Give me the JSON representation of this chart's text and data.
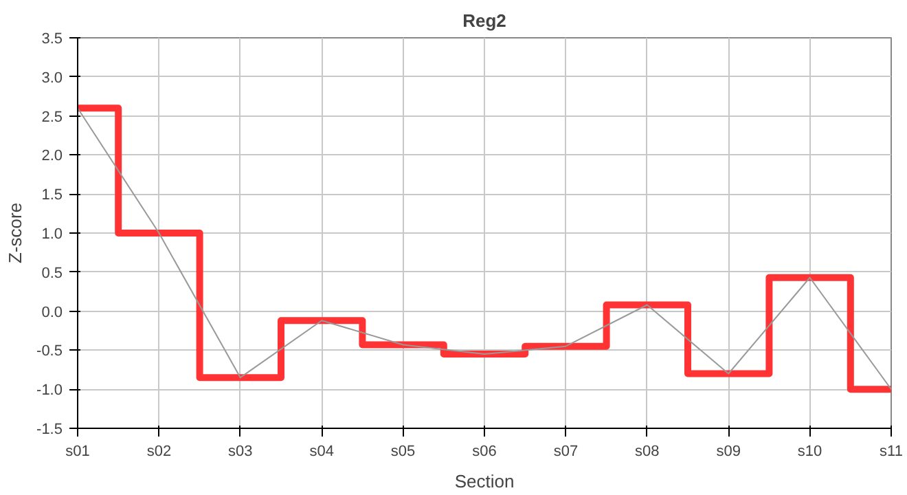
{
  "chart_data": {
    "type": "step",
    "title": "Reg2",
    "xlabel": "Section",
    "ylabel": "Z-score",
    "categories": [
      "s01",
      "s02",
      "s03",
      "s04",
      "s05",
      "s06",
      "s07",
      "s08",
      "s09",
      "s10",
      "s11"
    ],
    "series": [
      {
        "color": "#ff3333",
        "values": [
          2.6,
          1.0,
          -0.85,
          -0.12,
          -0.43,
          -0.55,
          -0.45,
          0.08,
          -0.8,
          0.43,
          -1.0
        ]
      },
      {
        "type": "line",
        "color": "#999999",
        "values": [
          2.6,
          1.0,
          -0.85,
          -0.12,
          -0.43,
          -0.55,
          -0.45,
          0.08,
          -0.8,
          0.43,
          -1.0
        ]
      }
    ],
    "ylim": [
      -1.5,
      3.5
    ],
    "yticks": [
      {
        "value": -1.5,
        "label": "-1.5"
      },
      {
        "value": -1,
        "label": "-1.0"
      },
      {
        "value": -0.5,
        "label": "-0.5"
      },
      {
        "value": 0,
        "label": "0.0"
      },
      {
        "value": 0.5,
        "label": "0.5"
      },
      {
        "value": 1,
        "label": "1.0"
      },
      {
        "value": 1.5,
        "label": "1.5"
      },
      {
        "value": 2,
        "label": "2.0"
      },
      {
        "value": 2.5,
        "label": "2.5"
      },
      {
        "value": 3,
        "label": "3.0"
      },
      {
        "value": 3.5,
        "label": "3.5"
      }
    ],
    "grid": true
  }
}
